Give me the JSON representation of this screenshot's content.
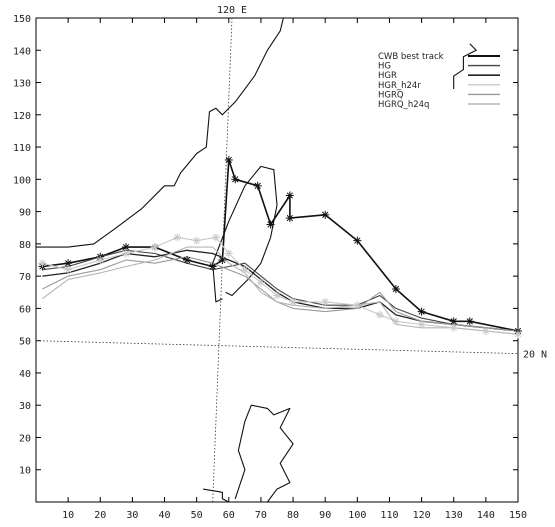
{
  "chart_data": {
    "type": "line",
    "x_range": [
      0,
      150
    ],
    "y_range": [
      0,
      150
    ],
    "x_ticks": [
      10,
      20,
      30,
      40,
      50,
      60,
      70,
      80,
      90,
      100,
      110,
      120,
      130,
      140,
      150
    ],
    "y_ticks": [
      10,
      20,
      30,
      40,
      50,
      60,
      70,
      80,
      90,
      100,
      110,
      120,
      130,
      140,
      150
    ],
    "grid": false,
    "legend_position": "top-right",
    "reference_lines": [
      {
        "label": "120 E",
        "points": [
          [
            55,
            0
          ],
          [
            61,
            150
          ]
        ]
      },
      {
        "label": "20 N",
        "points": [
          [
            0,
            50
          ],
          [
            150,
            46
          ]
        ]
      }
    ],
    "coastlines": [
      {
        "points": [
          [
            0,
            79
          ],
          [
            10,
            79
          ],
          [
            18,
            80
          ],
          [
            25,
            85
          ],
          [
            33,
            91
          ],
          [
            40,
            98
          ],
          [
            43,
            98
          ],
          [
            45,
            102
          ],
          [
            50,
            108
          ],
          [
            53,
            110
          ],
          [
            54,
            121
          ],
          [
            56,
            122
          ],
          [
            58,
            120
          ],
          [
            62,
            124
          ],
          [
            68,
            132
          ],
          [
            72,
            140
          ],
          [
            76,
            146
          ],
          [
            77,
            150
          ]
        ]
      },
      {
        "points": [
          [
            58,
            63
          ],
          [
            56,
            62
          ],
          [
            55,
            74
          ],
          [
            60,
            87
          ],
          [
            65,
            98
          ],
          [
            70,
            104
          ],
          [
            74,
            103
          ],
          [
            75,
            92
          ],
          [
            73,
            82
          ],
          [
            70,
            74
          ],
          [
            66,
            69
          ],
          [
            63,
            66
          ],
          [
            61,
            64
          ],
          [
            59,
            65
          ]
        ]
      },
      {
        "points": [
          [
            52,
            4
          ],
          [
            58,
            3
          ],
          [
            58,
            1
          ],
          [
            60,
            0
          ]
        ]
      },
      {
        "points": [
          [
            62,
            1
          ],
          [
            65,
            10
          ],
          [
            63,
            16
          ],
          [
            65,
            25
          ],
          [
            67,
            30
          ],
          [
            72,
            29
          ],
          [
            74,
            27
          ],
          [
            79,
            29
          ],
          [
            76,
            23
          ],
          [
            80,
            18
          ],
          [
            76,
            12
          ],
          [
            79,
            6
          ],
          [
            75,
            4
          ],
          [
            72,
            0
          ]
        ]
      },
      {
        "points": [
          [
            135,
            142
          ],
          [
            137,
            140
          ],
          [
            133,
            138
          ],
          [
            133,
            134
          ],
          [
            130,
            132
          ],
          [
            130,
            128
          ]
        ]
      }
    ],
    "series": [
      {
        "name": "CWB best track",
        "color": "#111111",
        "width": 1.6,
        "marker": "asterisk",
        "points": [
          [
            2,
            73
          ],
          [
            10,
            74
          ],
          [
            20,
            76
          ],
          [
            28,
            79
          ],
          [
            37,
            79
          ],
          [
            47,
            75
          ],
          [
            55,
            73
          ],
          [
            58,
            75
          ],
          [
            60,
            106
          ],
          [
            62,
            100
          ],
          [
            69,
            98
          ],
          [
            73,
            86
          ],
          [
            79,
            95
          ],
          [
            79,
            88
          ],
          [
            90,
            89
          ],
          [
            100,
            81
          ],
          [
            112,
            66
          ],
          [
            120,
            59
          ],
          [
            130,
            56
          ],
          [
            135,
            56
          ],
          [
            150,
            53
          ]
        ]
      },
      {
        "name": "HG",
        "color": "#444444",
        "width": 1.1,
        "points": [
          [
            2,
            72
          ],
          [
            10,
            73
          ],
          [
            20,
            76
          ],
          [
            28,
            78
          ],
          [
            37,
            77
          ],
          [
            47,
            74
          ],
          [
            55,
            72
          ],
          [
            60,
            73
          ],
          [
            65,
            74
          ],
          [
            70,
            70
          ],
          [
            75,
            66
          ],
          [
            80,
            63
          ],
          [
            90,
            61
          ],
          [
            100,
            61
          ],
          [
            107,
            64
          ],
          [
            112,
            60
          ],
          [
            120,
            57
          ],
          [
            130,
            55
          ],
          [
            140,
            54
          ],
          [
            150,
            53
          ]
        ]
      },
      {
        "name": "HGR",
        "color": "#222222",
        "width": 1.3,
        "points": [
          [
            2,
            70
          ],
          [
            10,
            71
          ],
          [
            20,
            74
          ],
          [
            28,
            77
          ],
          [
            37,
            76
          ],
          [
            47,
            78
          ],
          [
            55,
            77
          ],
          [
            60,
            75
          ],
          [
            65,
            73
          ],
          [
            70,
            69
          ],
          [
            75,
            65
          ],
          [
            80,
            62
          ],
          [
            90,
            60
          ],
          [
            100,
            60
          ],
          [
            107,
            62
          ],
          [
            112,
            58
          ],
          [
            120,
            56
          ],
          [
            130,
            55
          ],
          [
            140,
            54
          ],
          [
            150,
            53
          ]
        ]
      },
      {
        "name": "HGR_h24r",
        "color": "#c8c8c8",
        "width": 1.1,
        "marker": "asterisk",
        "points": [
          [
            2,
            74
          ],
          [
            10,
            72
          ],
          [
            20,
            75
          ],
          [
            28,
            77
          ],
          [
            37,
            79
          ],
          [
            44,
            82
          ],
          [
            50,
            81
          ],
          [
            56,
            82
          ],
          [
            60,
            77
          ],
          [
            65,
            72
          ],
          [
            70,
            68
          ],
          [
            75,
            64
          ],
          [
            80,
            62
          ],
          [
            90,
            62
          ],
          [
            100,
            61
          ],
          [
            107,
            58
          ],
          [
            112,
            56
          ],
          [
            120,
            55
          ],
          [
            130,
            54
          ],
          [
            140,
            53
          ],
          [
            150,
            52
          ]
        ]
      },
      {
        "name": "HGRQ",
        "color": "#9a9a9a",
        "width": 1.1,
        "points": [
          [
            2,
            66
          ],
          [
            10,
            70
          ],
          [
            20,
            72
          ],
          [
            28,
            75
          ],
          [
            37,
            74
          ],
          [
            47,
            76
          ],
          [
            55,
            74
          ],
          [
            60,
            72
          ],
          [
            65,
            70
          ],
          [
            70,
            66
          ],
          [
            75,
            62
          ],
          [
            80,
            60
          ],
          [
            90,
            59
          ],
          [
            100,
            60
          ],
          [
            107,
            65
          ],
          [
            112,
            59
          ],
          [
            120,
            56
          ],
          [
            130,
            55
          ],
          [
            140,
            54
          ],
          [
            150,
            53
          ]
        ]
      },
      {
        "name": "HGRQ_h24q",
        "color": "#b5b5b5",
        "width": 1.1,
        "points": [
          [
            2,
            63
          ],
          [
            10,
            69
          ],
          [
            20,
            71
          ],
          [
            28,
            73
          ],
          [
            37,
            75
          ],
          [
            47,
            79
          ],
          [
            55,
            79
          ],
          [
            60,
            74
          ],
          [
            65,
            71
          ],
          [
            70,
            65
          ],
          [
            75,
            62
          ],
          [
            80,
            61
          ],
          [
            90,
            60
          ],
          [
            100,
            61
          ],
          [
            107,
            62
          ],
          [
            112,
            55
          ],
          [
            120,
            54
          ],
          [
            130,
            54
          ],
          [
            140,
            53
          ],
          [
            150,
            52
          ]
        ]
      }
    ]
  }
}
